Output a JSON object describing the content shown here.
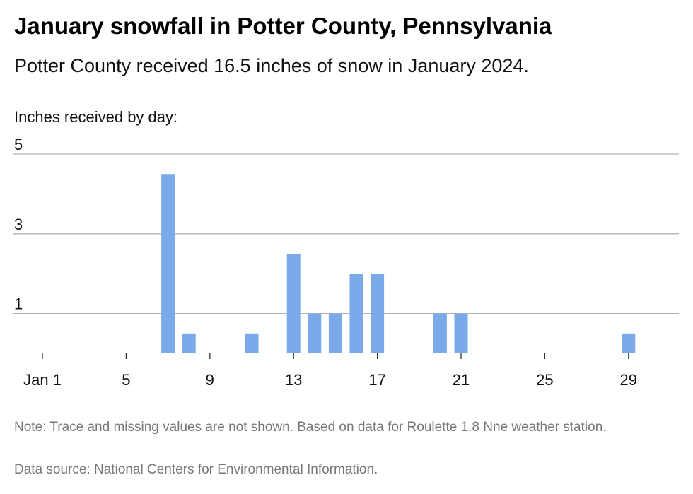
{
  "header": {
    "title": "January snowfall in Potter County, Pennsylvania",
    "subtitle": "Potter County received 16.5 inches of snow in January 2024."
  },
  "footer": {
    "note": "Note: Trace and missing values are not shown. Based on data for Roulette 1.8 Nne weather station.",
    "source": "Data source: National Centers for Environmental Information."
  },
  "chart_data": {
    "type": "bar",
    "title": "January snowfall in Potter County, Pennsylvania",
    "subtitle": "Potter County received 16.5 inches of snow in January 2024.",
    "ylabel": "Inches received by day:",
    "xlabel": "",
    "x": [
      7,
      8,
      11,
      13,
      14,
      15,
      16,
      17,
      20,
      21,
      29
    ],
    "values": [
      4.5,
      0.5,
      0.5,
      2.5,
      1,
      1,
      2,
      2,
      1,
      1,
      0.5
    ],
    "xlim": [
      1,
      31
    ],
    "ylim": [
      0,
      5
    ],
    "x_ticks": [
      1,
      5,
      9,
      13,
      17,
      21,
      25,
      29
    ],
    "x_tick_labels": [
      "Jan 1",
      "5",
      "9",
      "13",
      "17",
      "21",
      "25",
      "29"
    ],
    "y_ticks": [
      1,
      3,
      5
    ],
    "grid": true,
    "bar_color": "#7aaaea",
    "grid_color": "#b3b3b3"
  }
}
